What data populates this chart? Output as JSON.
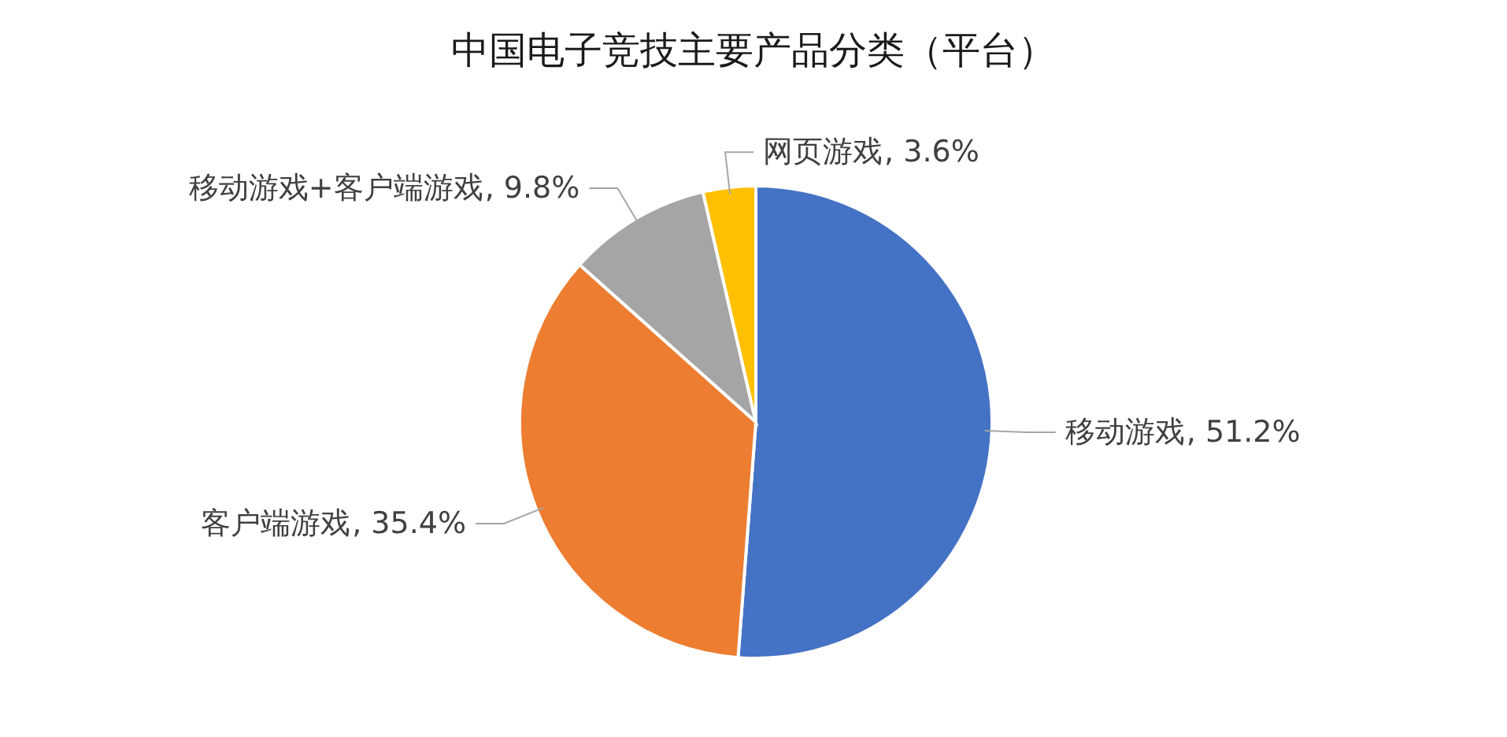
{
  "chart_data": {
    "type": "pie",
    "title": "中国电子竞技主要产品分类（平台）",
    "categories": [
      "移动游戏",
      "客户端游戏",
      "移动游戏+客户端游戏",
      "网页游戏"
    ],
    "values": [
      51.2,
      35.4,
      9.8,
      3.6
    ],
    "colors": [
      "#4472c4",
      "#ed7d31",
      "#a5a5a5",
      "#ffc000"
    ],
    "value_labels": [
      ", 51.2%",
      ", 35.4%",
      ", 9.8%",
      ", 3.6%"
    ],
    "legend": false
  }
}
